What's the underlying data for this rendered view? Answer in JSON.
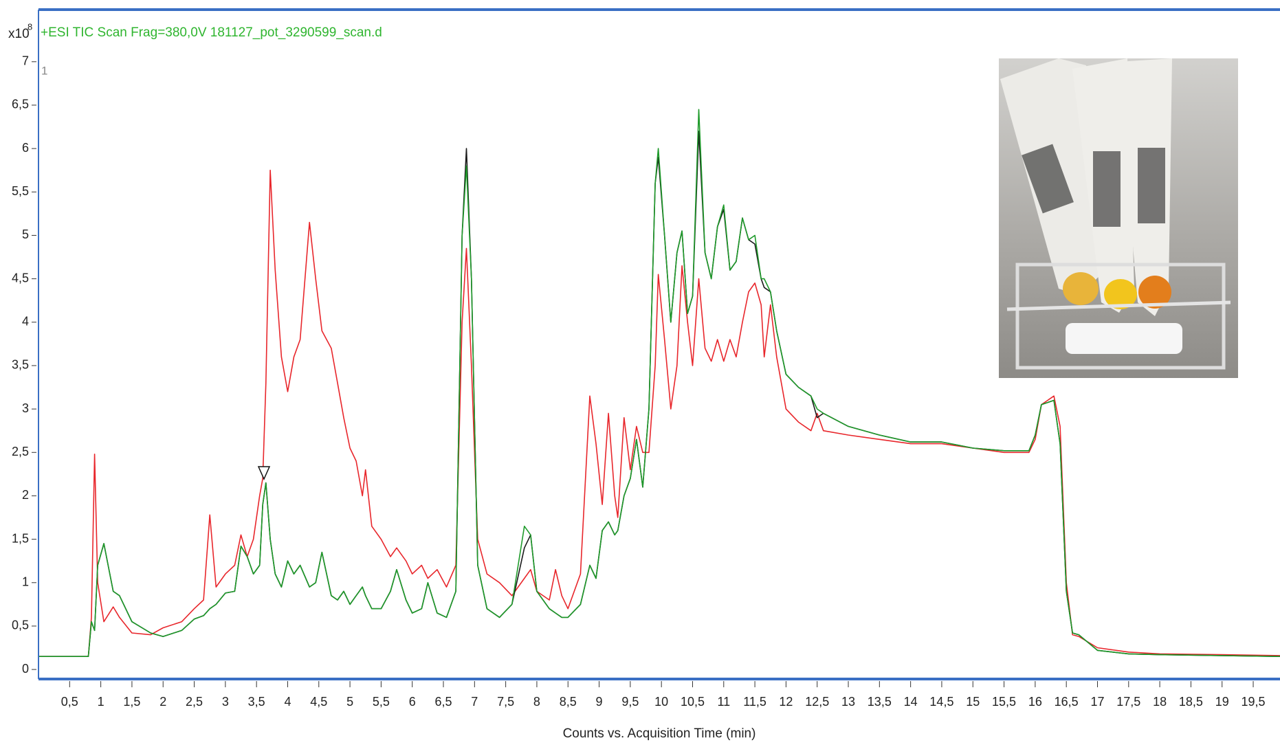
{
  "chart_data": {
    "type": "line",
    "title": "+ESI TIC Scan Frag=380,0V 181127_pot_3290599_scan.d",
    "title_color": "#2fb52f",
    "y_multiplier": "x10",
    "y_exponent": "8",
    "trace_label": "1",
    "xlabel": "Counts vs. Acquisition Time (min)",
    "xlim": [
      0,
      19.93
    ],
    "ylim": [
      -0.11,
      7.6
    ],
    "xticks": [
      {
        "value": 0.5,
        "label": "0,5"
      },
      1,
      {
        "value": 1.5,
        "label": "1,5"
      },
      2,
      {
        "value": 2.5,
        "label": "2,5"
      },
      3,
      {
        "value": 3.5,
        "label": "3,5"
      },
      4,
      {
        "value": 4.5,
        "label": "4,5"
      },
      5,
      {
        "value": 5.5,
        "label": "5,5"
      },
      6,
      {
        "value": 6.5,
        "label": "6,5"
      },
      7,
      {
        "value": 7.5,
        "label": "7,5"
      },
      8,
      {
        "value": 8.5,
        "label": "8,5"
      },
      9,
      {
        "value": 9.5,
        "label": "9,5"
      },
      10,
      {
        "value": 10.5,
        "label": "10,5"
      },
      11,
      {
        "value": 11.5,
        "label": "11,5"
      },
      12,
      {
        "value": 12.5,
        "label": "12,5"
      },
      13,
      {
        "value": 13.5,
        "label": "13,5"
      },
      14,
      {
        "value": 14.5,
        "label": "14,5"
      },
      15,
      {
        "value": 15.5,
        "label": "15,5"
      },
      16,
      {
        "value": 16.5,
        "label": "16,5"
      },
      17,
      {
        "value": 17.5,
        "label": "17,5"
      },
      18,
      {
        "value": 18.5,
        "label": "18,5"
      },
      19,
      {
        "value": 19.5,
        "label": "19,5"
      }
    ],
    "yticks": [
      0,
      {
        "value": 0.5,
        "label": "0,5"
      },
      1,
      {
        "value": 1.5,
        "label": "1,5"
      },
      2,
      {
        "value": 2.5,
        "label": "2,5"
      },
      3,
      {
        "value": 3.5,
        "label": "3,5"
      },
      4,
      {
        "value": 4.5,
        "label": "4,5"
      },
      5,
      {
        "value": 5.5,
        "label": "5,5"
      },
      6,
      {
        "value": 6.5,
        "label": "6,5"
      },
      7
    ],
    "grid": false,
    "x": [
      0,
      0.8,
      0.85,
      0.9,
      0.95,
      1.05,
      1.2,
      1.3,
      1.5,
      1.8,
      2.0,
      2.3,
      2.5,
      2.65,
      2.75,
      2.85,
      3.0,
      3.15,
      3.25,
      3.35,
      3.45,
      3.55,
      3.6,
      3.65,
      3.72,
      3.8,
      3.9,
      4.0,
      4.1,
      4.2,
      4.35,
      4.45,
      4.55,
      4.7,
      4.8,
      4.9,
      5.0,
      5.1,
      5.2,
      5.25,
      5.35,
      5.5,
      5.65,
      5.75,
      5.9,
      6.0,
      6.15,
      6.25,
      6.4,
      6.55,
      6.7,
      6.8,
      6.87,
      6.95,
      7.05,
      7.2,
      7.4,
      7.6,
      7.8,
      7.9,
      8.0,
      8.2,
      8.3,
      8.4,
      8.5,
      8.7,
      8.85,
      8.95,
      9.05,
      9.15,
      9.25,
      9.3,
      9.4,
      9.5,
      9.6,
      9.7,
      9.8,
      9.9,
      9.95,
      10.05,
      10.15,
      10.25,
      10.33,
      10.42,
      10.5,
      10.6,
      10.7,
      10.8,
      10.9,
      11.0,
      11.1,
      11.2,
      11.3,
      11.4,
      11.5,
      11.6,
      11.65,
      11.75,
      11.85,
      12.0,
      12.2,
      12.4,
      12.5,
      12.6,
      13.0,
      13.5,
      14.0,
      14.5,
      15.0,
      15.5,
      15.9,
      16.0,
      16.1,
      16.3,
      16.4,
      16.5,
      16.6,
      16.7,
      17.0,
      17.5,
      18.0,
      19.0,
      19.93
    ],
    "series": [
      {
        "color": "#e8262b",
        "values": [
          0.15,
          0.15,
          0.6,
          2.48,
          1.0,
          0.55,
          0.72,
          0.6,
          0.42,
          0.4,
          0.48,
          0.55,
          0.7,
          0.8,
          1.78,
          0.95,
          1.1,
          1.2,
          1.55,
          1.3,
          1.5,
          2.0,
          2.2,
          3.3,
          5.75,
          4.6,
          3.6,
          3.2,
          3.6,
          3.8,
          5.15,
          4.5,
          3.9,
          3.7,
          3.3,
          2.9,
          2.55,
          2.4,
          2.0,
          2.3,
          1.65,
          1.5,
          1.3,
          1.4,
          1.25,
          1.1,
          1.2,
          1.05,
          1.15,
          0.95,
          1.2,
          4.0,
          4.85,
          3.5,
          1.5,
          1.1,
          1.0,
          0.85,
          1.05,
          1.15,
          0.9,
          0.8,
          1.15,
          0.85,
          0.7,
          1.1,
          3.15,
          2.6,
          1.9,
          2.95,
          2.0,
          1.75,
          2.9,
          2.3,
          2.8,
          2.5,
          2.5,
          3.5,
          4.55,
          3.8,
          3.0,
          3.5,
          4.65,
          4.0,
          3.5,
          4.5,
          3.7,
          3.55,
          3.8,
          3.55,
          3.8,
          3.6,
          4.0,
          4.35,
          4.45,
          4.2,
          3.6,
          4.2,
          3.6,
          3.0,
          2.85,
          2.75,
          2.95,
          2.75,
          2.7,
          2.65,
          2.6,
          2.6,
          2.55,
          2.5,
          2.5,
          2.65,
          3.05,
          3.15,
          2.8,
          1.0,
          0.4,
          0.38,
          0.25,
          0.2,
          0.18,
          0.17,
          0.16
        ]
      },
      {
        "color": "#1a1a1a",
        "values": [
          0.15,
          0.15,
          0.55,
          0.45,
          1.2,
          1.45,
          0.9,
          0.85,
          0.55,
          0.42,
          0.38,
          0.45,
          0.58,
          0.62,
          0.7,
          0.75,
          0.88,
          0.9,
          1.42,
          1.3,
          1.1,
          1.2,
          1.9,
          2.15,
          1.5,
          1.1,
          0.95,
          1.25,
          1.1,
          1.2,
          0.95,
          1.0,
          1.35,
          0.85,
          0.8,
          0.9,
          0.75,
          0.85,
          0.95,
          0.85,
          0.7,
          0.7,
          0.9,
          1.15,
          0.8,
          0.65,
          0.7,
          1.0,
          0.65,
          0.6,
          0.9,
          5.0,
          6.0,
          4.5,
          1.2,
          0.7,
          0.6,
          0.75,
          1.4,
          1.55,
          0.9,
          0.7,
          0.65,
          0.6,
          0.6,
          0.75,
          1.2,
          1.05,
          1.6,
          1.7,
          1.55,
          1.6,
          2.0,
          2.2,
          2.65,
          2.1,
          3.0,
          5.6,
          5.9,
          5.0,
          4.0,
          4.8,
          5.05,
          4.1,
          4.3,
          6.2,
          4.8,
          4.5,
          5.1,
          5.3,
          4.6,
          4.7,
          5.2,
          4.95,
          4.9,
          4.5,
          4.4,
          4.35,
          3.9,
          3.4,
          3.25,
          3.15,
          2.9,
          2.95,
          2.8,
          2.7,
          2.62,
          2.62,
          2.55,
          2.52,
          2.52,
          2.7,
          3.05,
          3.1,
          2.6,
          0.9,
          0.42,
          0.4,
          0.22,
          0.18,
          0.17,
          0.16,
          0.15
        ]
      },
      {
        "color": "#1e9a2a",
        "values": [
          0.15,
          0.15,
          0.55,
          0.45,
          1.2,
          1.45,
          0.9,
          0.85,
          0.55,
          0.42,
          0.38,
          0.45,
          0.58,
          0.62,
          0.7,
          0.75,
          0.88,
          0.9,
          1.42,
          1.3,
          1.1,
          1.2,
          1.9,
          2.15,
          1.5,
          1.1,
          0.95,
          1.25,
          1.1,
          1.2,
          0.95,
          1.0,
          1.35,
          0.85,
          0.8,
          0.9,
          0.75,
          0.85,
          0.95,
          0.85,
          0.7,
          0.7,
          0.9,
          1.15,
          0.8,
          0.65,
          0.7,
          1.0,
          0.65,
          0.6,
          0.9,
          5.0,
          5.8,
          4.5,
          1.2,
          0.7,
          0.6,
          0.75,
          1.65,
          1.55,
          0.9,
          0.7,
          0.65,
          0.6,
          0.6,
          0.75,
          1.2,
          1.05,
          1.6,
          1.7,
          1.55,
          1.6,
          2.0,
          2.2,
          2.65,
          2.1,
          3.0,
          5.6,
          6.0,
          5.0,
          4.0,
          4.8,
          5.05,
          4.1,
          4.3,
          6.45,
          4.8,
          4.5,
          5.1,
          5.35,
          4.6,
          4.7,
          5.2,
          4.95,
          5.0,
          4.5,
          4.5,
          4.35,
          3.9,
          3.4,
          3.25,
          3.15,
          3.0,
          2.95,
          2.8,
          2.7,
          2.62,
          2.62,
          2.55,
          2.52,
          2.52,
          2.7,
          3.05,
          3.1,
          2.6,
          0.9,
          0.42,
          0.4,
          0.22,
          0.18,
          0.17,
          0.16,
          0.15
        ]
      }
    ]
  }
}
